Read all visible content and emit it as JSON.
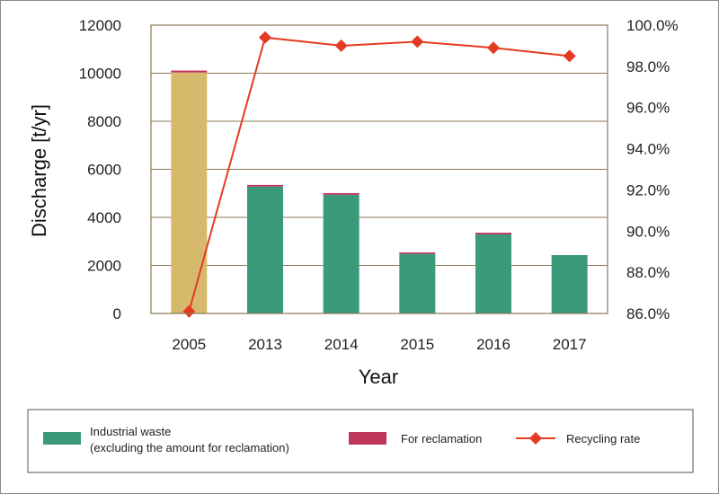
{
  "chart_data": {
    "type": "bar",
    "categories": [
      "2005",
      "2013",
      "2014",
      "2015",
      "2016",
      "2017"
    ],
    "series": [
      {
        "name": "Industrial waste (excluding the amount for reclamation)",
        "kind": "bar",
        "axis": "left",
        "values": [
          10030,
          5280,
          4940,
          2480,
          3290,
          2430
        ],
        "color": "#3a9a7a",
        "highlight_color": "#d6b96a",
        "highlight_category": "2005"
      },
      {
        "name": "For reclamation",
        "kind": "bar-stacked",
        "axis": "left",
        "values": [
          80,
          70,
          70,
          60,
          70,
          0
        ],
        "color": "#c0365a"
      },
      {
        "name": "Recycling rate",
        "kind": "line",
        "axis": "right",
        "values": [
          86.1,
          99.4,
          99.0,
          99.2,
          98.9,
          98.5
        ],
        "color": "#e53a22"
      }
    ],
    "xlabel": "Year",
    "ylabel": "Discharge [t/yr]",
    "ylim": [
      0,
      12000
    ],
    "y_ticks": [
      "0",
      "2000",
      "4000",
      "6000",
      "8000",
      "10000",
      "12000"
    ],
    "y2lim": [
      86.0,
      100.0
    ],
    "y2_ticks": [
      "86.0%",
      "88.0%",
      "90.0%",
      "92.0%",
      "94.0%",
      "96.0%",
      "98.0%",
      "100.0%"
    ],
    "grid": true,
    "legend": {
      "position": "bottom",
      "items": [
        {
          "label_line1": "Industrial waste",
          "label_line2": "(excluding the amount for reclamation)",
          "color": "#3a9a7a",
          "marker": "rect"
        },
        {
          "label_line1": "For reclamation",
          "label_line2": "",
          "color": "#c0365a",
          "marker": "rect"
        },
        {
          "label_line1": "Recycling rate",
          "label_line2": "",
          "color": "#e53a22",
          "marker": "line-diamond"
        }
      ]
    }
  }
}
